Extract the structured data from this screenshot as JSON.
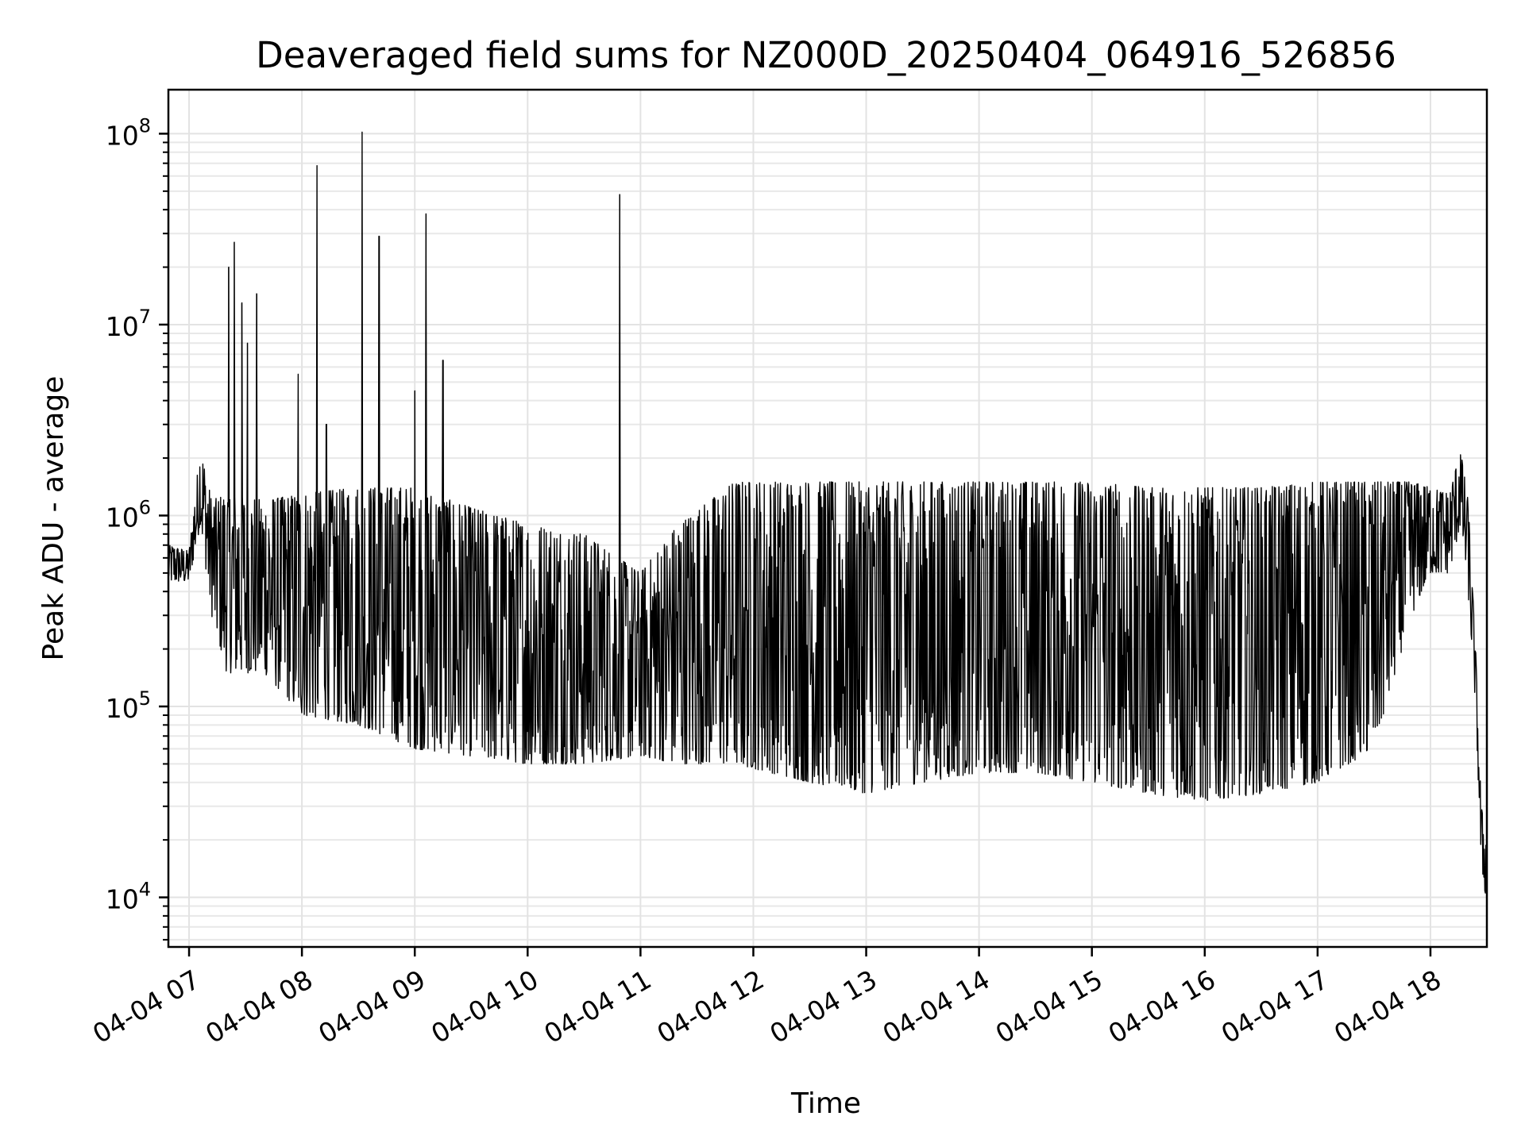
{
  "chart_data": {
    "type": "line",
    "title": "Deaveraged field sums for NZ000D_20250404_064916_526856",
    "xlabel": "Time",
    "ylabel": "Peak ADU - average",
    "yscale": "log",
    "ylim": [
      5500,
      170000000
    ],
    "xlim": [
      "2025-04-04 06:49",
      "2025-04-04 18:30"
    ],
    "grid": true,
    "line_color": "#000000",
    "x_ticks": [
      "04-04 07",
      "04-04 08",
      "04-04 09",
      "04-04 10",
      "04-04 11",
      "04-04 12",
      "04-04 13",
      "04-04 14",
      "04-04 15",
      "04-04 16",
      "04-04 17",
      "04-04 18"
    ],
    "y_ticks": [
      {
        "value": 10000,
        "base": "10",
        "exp": "4"
      },
      {
        "value": 100000,
        "base": "10",
        "exp": "5"
      },
      {
        "value": 1000000,
        "base": "10",
        "exp": "6"
      },
      {
        "value": 10000000,
        "base": "10",
        "exp": "7"
      },
      {
        "value": 100000000,
        "base": "10",
        "exp": "8"
      }
    ],
    "spikes": [
      {
        "x": "2025-04-04 07:21",
        "y": 20000000
      },
      {
        "x": "2025-04-04 07:24",
        "y": 27000000
      },
      {
        "x": "2025-04-04 07:28",
        "y": 13000000
      },
      {
        "x": "2025-04-04 07:31",
        "y": 8000000
      },
      {
        "x": "2025-04-04 07:36",
        "y": 14500000
      },
      {
        "x": "2025-04-04 07:58",
        "y": 5500000
      },
      {
        "x": "2025-04-04 08:08",
        "y": 68000000
      },
      {
        "x": "2025-04-04 08:13",
        "y": 3000000
      },
      {
        "x": "2025-04-04 08:32",
        "y": 102000000
      },
      {
        "x": "2025-04-04 08:41",
        "y": 29000000
      },
      {
        "x": "2025-04-04 09:00",
        "y": 4500000
      },
      {
        "x": "2025-04-04 09:06",
        "y": 38000000
      },
      {
        "x": "2025-04-04 09:15",
        "y": 6500000
      },
      {
        "x": "2025-04-04 10:49",
        "y": 48000000
      }
    ],
    "envelope": [
      {
        "x": "2025-04-04 06:49",
        "high": 700000,
        "low": 450000
      },
      {
        "x": "2025-04-04 07:00",
        "high": 650000,
        "low": 450000
      },
      {
        "x": "2025-04-04 07:06",
        "high": 2300000,
        "low": 900000
      },
      {
        "x": "2025-04-04 07:12",
        "high": 1200000,
        "low": 300000
      },
      {
        "x": "2025-04-04 07:20",
        "high": 1300000,
        "low": 150000
      },
      {
        "x": "2025-04-04 07:40",
        "high": 1200000,
        "low": 150000
      },
      {
        "x": "2025-04-04 08:00",
        "high": 1300000,
        "low": 90000
      },
      {
        "x": "2025-04-04 08:30",
        "high": 1400000,
        "low": 80000
      },
      {
        "x": "2025-04-04 09:00",
        "high": 1400000,
        "low": 60000
      },
      {
        "x": "2025-04-04 09:30",
        "high": 1100000,
        "low": 55000
      },
      {
        "x": "2025-04-04 10:00",
        "high": 900000,
        "low": 50000
      },
      {
        "x": "2025-04-04 10:30",
        "high": 800000,
        "low": 50000
      },
      {
        "x": "2025-04-04 11:00",
        "high": 500000,
        "low": 55000
      },
      {
        "x": "2025-04-04 11:20",
        "high": 900000,
        "low": 50000
      },
      {
        "x": "2025-04-04 11:50",
        "high": 1500000,
        "low": 50000
      },
      {
        "x": "2025-04-04 12:30",
        "high": 1500000,
        "low": 40000
      },
      {
        "x": "2025-04-04 13:00",
        "high": 1500000,
        "low": 35000
      },
      {
        "x": "2025-04-04 13:30",
        "high": 1500000,
        "low": 40000
      },
      {
        "x": "2025-04-04 14:00",
        "high": 1500000,
        "low": 45000
      },
      {
        "x": "2025-04-04 14:30",
        "high": 1500000,
        "low": 45000
      },
      {
        "x": "2025-04-04 15:00",
        "high": 1500000,
        "low": 40000
      },
      {
        "x": "2025-04-04 15:30",
        "high": 1400000,
        "low": 35000
      },
      {
        "x": "2025-04-04 16:00",
        "high": 1400000,
        "low": 32000
      },
      {
        "x": "2025-04-04 16:30",
        "high": 1400000,
        "low": 35000
      },
      {
        "x": "2025-04-04 17:00",
        "high": 1500000,
        "low": 40000
      },
      {
        "x": "2025-04-04 17:30",
        "high": 1500000,
        "low": 60000
      },
      {
        "x": "2025-04-04 17:50",
        "high": 1500000,
        "low": 300000
      },
      {
        "x": "2025-04-04 18:00",
        "high": 1400000,
        "low": 500000
      },
      {
        "x": "2025-04-04 18:10",
        "high": 1300000,
        "low": 500000
      },
      {
        "x": "2025-04-04 18:16",
        "high": 2200000,
        "low": 900000
      },
      {
        "x": "2025-04-04 18:20",
        "high": 1200000,
        "low": 400000
      },
      {
        "x": "2025-04-04 18:24",
        "high": 200000,
        "low": 100000
      },
      {
        "x": "2025-04-04 18:27",
        "high": 30000,
        "low": 15000
      },
      {
        "x": "2025-04-04 18:30",
        "high": 20000,
        "low": 9000
      }
    ]
  }
}
